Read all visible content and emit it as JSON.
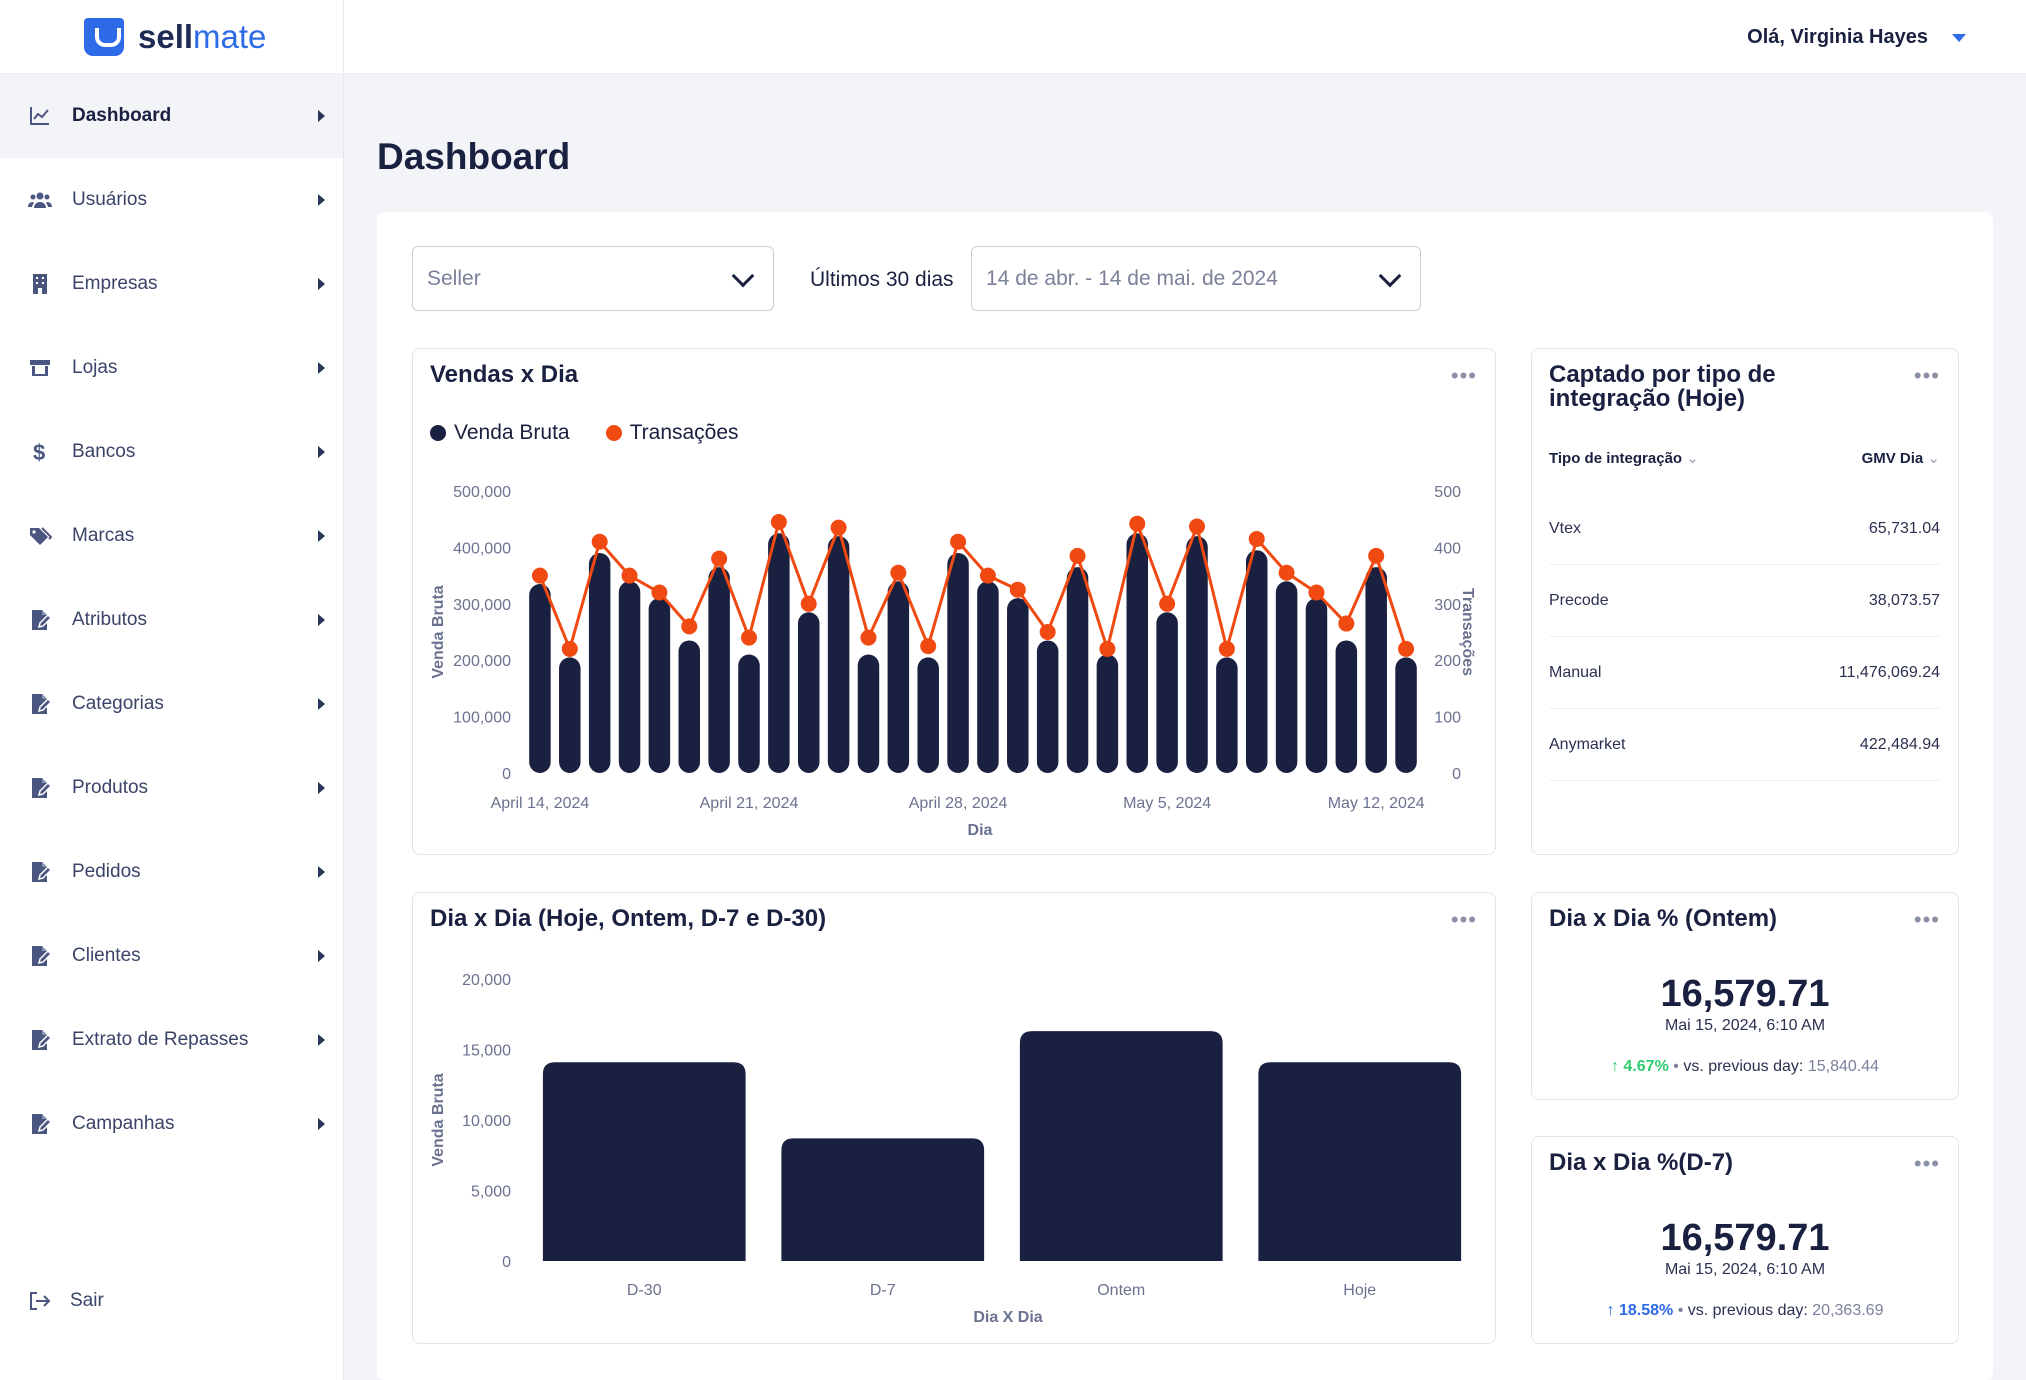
{
  "brand": {
    "name_bold": "sell",
    "name_light": "mate"
  },
  "user": {
    "greeting": "Olá, Virginia Hayes"
  },
  "sidebar": {
    "items": [
      {
        "label": "Dashboard",
        "icon": "chart-line-icon"
      },
      {
        "label": "Usuários",
        "icon": "users-icon"
      },
      {
        "label": "Empresas",
        "icon": "building-icon"
      },
      {
        "label": "Lojas",
        "icon": "store-icon"
      },
      {
        "label": "Bancos",
        "icon": "dollar-icon"
      },
      {
        "label": "Marcas",
        "icon": "tags-icon"
      },
      {
        "label": "Atributos",
        "icon": "file-edit-icon"
      },
      {
        "label": "Categorias",
        "icon": "file-edit-icon"
      },
      {
        "label": "Produtos",
        "icon": "file-edit-icon"
      },
      {
        "label": "Pedidos",
        "icon": "file-edit-icon"
      },
      {
        "label": "Clientes",
        "icon": "file-edit-icon"
      },
      {
        "label": "Extrato de Repasses",
        "icon": "file-edit-icon"
      },
      {
        "label": "Campanhas",
        "icon": "file-edit-icon"
      }
    ],
    "logout": "Sair"
  },
  "page": {
    "title": "Dashboard"
  },
  "filters": {
    "seller_placeholder": "Seller",
    "period_label": "Últimos 30 dias",
    "date_range": "14 de abr. - 14 de mai. de 2024"
  },
  "sales_chart": {
    "title": "Vendas x Dia",
    "legend_gross": "Venda Bruta",
    "legend_tx": "Transações"
  },
  "integration_card": {
    "title_line1": "Captado por tipo de",
    "title_line2": "integração (Hoje)",
    "col_type": "Tipo de integração",
    "col_gmv": "GMV Dia",
    "rows": [
      {
        "type": "Vtex",
        "gmv": "65,731.04"
      },
      {
        "type": "Precode",
        "gmv": "38,073.57"
      },
      {
        "type": "Manual",
        "gmv": "11,476,069.24"
      },
      {
        "type": "Anymarket",
        "gmv": "422,484.94"
      }
    ]
  },
  "daily_chart": {
    "title": "Dia x Dia (Hoje, Ontem, D-7 e D-30)"
  },
  "kpi_yesterday": {
    "title": "Dia x Dia % (Ontem)",
    "value": "16,579.71",
    "date": "Mai 15, 2024, 6:10 AM",
    "pct": "4.67%",
    "cmp_label": "vs. previous day:",
    "cmp_value": "15,840.44",
    "pct_color": "#2ecc71"
  },
  "kpi_d7": {
    "title": "Dia x Dia %(D-7)",
    "value": "16,579.71",
    "date": "Mai 15, 2024, 6:10 AM",
    "pct": "18.58%",
    "cmp_label": "vs. previous day:",
    "cmp_value": "20,363.69",
    "pct_color": "#2e6be6"
  },
  "colors": {
    "bar": "#1a2040",
    "line": "#f04a12",
    "accent": "#2e6be6"
  },
  "chart_data": [
    {
      "type": "bar+line",
      "title": "Vendas x Dia",
      "xlabel": "Dia",
      "ylabel": "Venda Bruta",
      "y2label": "Transações",
      "ylim": [
        0,
        500000
      ],
      "y2lim": [
        0,
        500
      ],
      "yticks": [
        "0",
        "100,000",
        "200,000",
        "300,000",
        "400,000",
        "500,000"
      ],
      "y2ticks": [
        "0",
        "100",
        "200",
        "300",
        "400",
        "500"
      ],
      "xticks": [
        {
          "label": "April 14, 2024",
          "index": 0
        },
        {
          "label": "April 21, 2024",
          "index": 7
        },
        {
          "label": "April 28, 2024",
          "index": 14
        },
        {
          "label": "May 5, 2024",
          "index": 21
        },
        {
          "label": "May 12, 2024",
          "index": 28
        }
      ],
      "series": [
        {
          "name": "Venda Bruta",
          "kind": "bar",
          "values": [
            335000,
            205000,
            390000,
            340000,
            310000,
            235000,
            365000,
            210000,
            425000,
            285000,
            420000,
            210000,
            340000,
            205000,
            390000,
            340000,
            310000,
            235000,
            365000,
            210000,
            425000,
            285000,
            420000,
            205000,
            395000,
            340000,
            310000,
            235000,
            365000,
            205000
          ]
        },
        {
          "name": "Transações",
          "kind": "line",
          "values": [
            350,
            220,
            410,
            350,
            320,
            260,
            380,
            240,
            445,
            300,
            435,
            240,
            355,
            225,
            410,
            350,
            325,
            250,
            385,
            220,
            442,
            300,
            437,
            220,
            415,
            355,
            320,
            265,
            385,
            220
          ]
        }
      ]
    },
    {
      "type": "bar",
      "title": "Dia x Dia (Hoje, Ontem, D-7 e D-30)",
      "xlabel": "Dia X Dia",
      "ylabel": "Venda Bruta",
      "ylim": [
        0,
        20000
      ],
      "yticks": [
        "0",
        "5,000",
        "10,000",
        "15,000",
        "20,000"
      ],
      "categories": [
        "D-30",
        "D-7",
        "Ontem",
        "Hoje"
      ],
      "values": [
        14100,
        8700,
        16300,
        14100
      ]
    }
  ]
}
